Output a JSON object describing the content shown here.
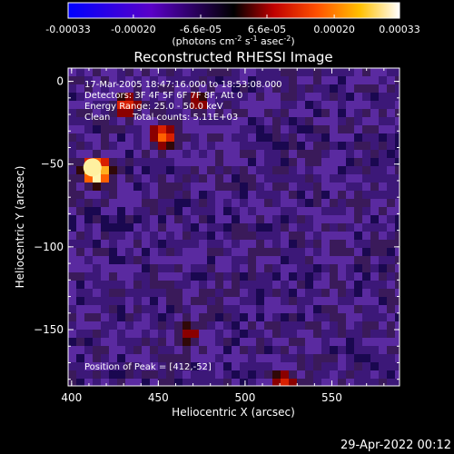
{
  "colorbar": {
    "ticks": [
      "-0.00033",
      "-0.00020",
      "-6.6e-05",
      "6.6e-05",
      "0.00020",
      "0.00033"
    ],
    "tick_values": [
      -0.00033,
      -0.0002,
      -6.6e-05,
      6.6e-05,
      0.0002,
      0.00033
    ],
    "range": [
      -0.00033,
      0.00033
    ],
    "unit_parts": [
      "(photons cm",
      "-2",
      " s",
      "-1",
      " asec",
      "-2",
      ")"
    ],
    "gradient_colors": [
      "#0000ff",
      "#5a00c8",
      "#000000",
      "#c00000",
      "#ff5000",
      "#ffc000",
      "#ffffff"
    ]
  },
  "title": "Reconstructed RHESSI Image",
  "info": {
    "line1": "17-Mar-2005 18:47:16.000 to 18:53:08.000",
    "line2": "Detectors: 3F 4F 5F 6F 7F 8F, Att 0",
    "line3": "Energy Range: 25.0 - 50.0 keV",
    "line4_a": "Clean",
    "line4_b": "Total counts: 5.11E+03"
  },
  "peak_label": "Position of Peak = [412,-52]",
  "peak": [
    412,
    -52
  ],
  "x_axis": {
    "label": "Heliocentric X (arcsec)",
    "ticks": [
      "400",
      "450",
      "500",
      "550"
    ],
    "tick_values": [
      400,
      450,
      500,
      550
    ],
    "range": [
      398,
      589
    ]
  },
  "y_axis": {
    "label": "Heliocentric Y (arcsec)",
    "ticks": [
      "0",
      "−50",
      "−100",
      "−150"
    ],
    "tick_values": [
      0,
      -50,
      -100,
      -150
    ],
    "range": [
      -184,
      8
    ]
  },
  "timestamp": "29-Apr-2022 00:12",
  "image_colors": {
    "bright_sources": [
      {
        "x": 412,
        "y": -52,
        "level": 1.0
      },
      {
        "x": 450,
        "y": -30,
        "level": 0.75
      },
      {
        "x": 430,
        "y": -12,
        "level": 0.7
      },
      {
        "x": 520,
        "y": -180,
        "level": 0.7
      },
      {
        "x": 470,
        "y": -10,
        "level": 0.6
      },
      {
        "x": 465,
        "y": -150,
        "level": 0.6
      },
      {
        "x": 505,
        "y": -100,
        "level": 0.55
      },
      {
        "x": 550,
        "y": -100,
        "level": 0.55
      },
      {
        "x": 410,
        "y": -140,
        "level": 0.5
      },
      {
        "x": 470,
        "y": -130,
        "level": 0.5
      },
      {
        "x": 490,
        "y": -40,
        "level": 0.45
      },
      {
        "x": 555,
        "y": -140,
        "level": 0.45
      }
    ]
  }
}
